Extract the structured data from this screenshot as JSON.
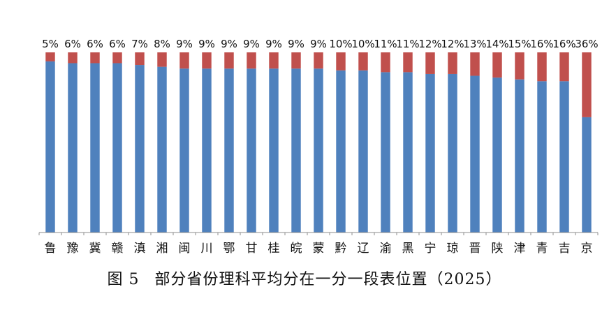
{
  "chart_data": {
    "type": "bar",
    "stacked": true,
    "normalized": true,
    "categories": [
      "鲁",
      "豫",
      "冀",
      "赣",
      "滇",
      "湘",
      "闽",
      "川",
      "鄂",
      "甘",
      "桂",
      "皖",
      "蒙",
      "黔",
      "辽",
      "渝",
      "黑",
      "宁",
      "琼",
      "晋",
      "陕",
      "津",
      "青",
      "吉",
      "京"
    ],
    "series": [
      {
        "color": "#4f81bd",
        "values": [
          95,
          94,
          94,
          94,
          93,
          92,
          91,
          91,
          91,
          91,
          91,
          91,
          91,
          90,
          90,
          89,
          89,
          88,
          88,
          87,
          86,
          85,
          84,
          84,
          64
        ]
      },
      {
        "color": "#c0504d",
        "values": [
          5,
          6,
          6,
          6,
          7,
          8,
          9,
          9,
          9,
          9,
          9,
          9,
          9,
          10,
          10,
          11,
          11,
          12,
          12,
          13,
          14,
          15,
          16,
          16,
          36
        ]
      }
    ],
    "data_labels": [
      "5%",
      "6%",
      "6%",
      "6%",
      "7%",
      "8%",
      "9%",
      "9%",
      "9%",
      "9%",
      "9%",
      "9%",
      "9%",
      "10%",
      "10%",
      "11%",
      "11%",
      "12%",
      "12%",
      "13%",
      "14%",
      "15%",
      "16%",
      "16%",
      "36%"
    ],
    "ylim": [
      0,
      100
    ],
    "grid": false,
    "legend": "none"
  },
  "caption": {
    "figure_label": "图 5",
    "text": "部分省份理科平均分在一分一段表位置（2025）"
  }
}
